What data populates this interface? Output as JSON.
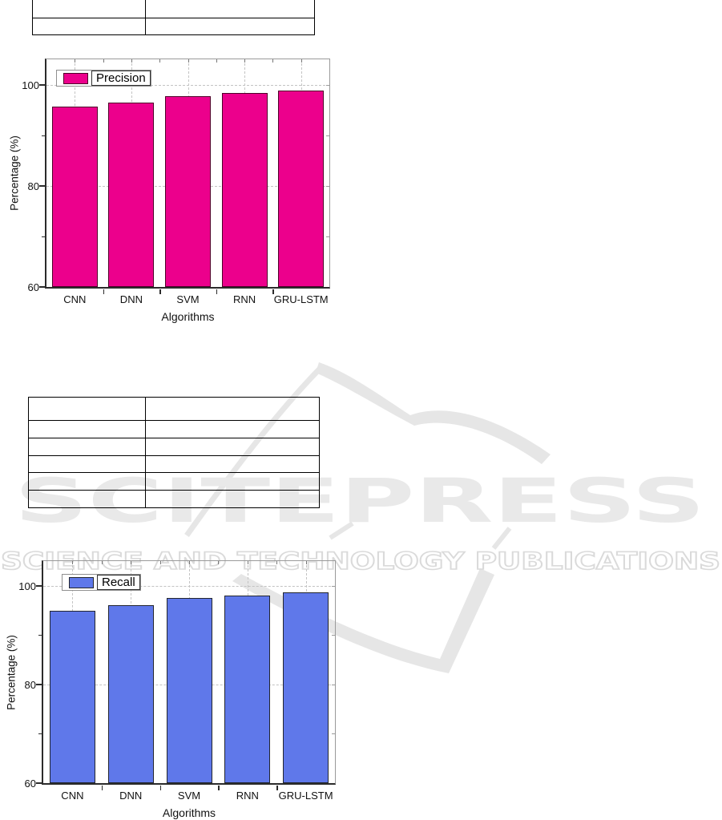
{
  "watermark": {
    "big_text": "SCITEPRESS",
    "sub_text": "SCIENCE AND TECHNOLOGY PUBLICATIONS",
    "color": "#e9e9e9",
    "logo_color": "#e6e6e6",
    "outline_color": "#dadada"
  },
  "tables": {
    "top": {
      "columns": 2,
      "rows": [
        [
          "",
          ""
        ],
        [
          "",
          ""
        ]
      ]
    },
    "middle": {
      "columns": 2,
      "rows": [
        [
          "",
          ""
        ],
        [
          "",
          ""
        ],
        [
          "",
          ""
        ],
        [
          "",
          ""
        ],
        [
          "",
          ""
        ],
        [
          "",
          ""
        ]
      ]
    }
  },
  "chart_data": [
    {
      "type": "bar",
      "title": "",
      "legend_label": "Precision",
      "categories": [
        "CNN",
        "DNN",
        "SVM",
        "RNN",
        "GRU-LSTM"
      ],
      "values": [
        95.6,
        96.4,
        97.7,
        98.4,
        98.9
      ],
      "xlabel": "Algorithms",
      "ylabel": "Percentage (%)",
      "ylim": [
        60,
        105
      ],
      "yticks": [
        60,
        80,
        100
      ],
      "yminorticks": [
        70,
        90
      ],
      "gridlines_y": [
        80,
        100
      ],
      "grid": true,
      "legend_position": "top-left",
      "bar_color": "#EC008C",
      "bar_border": "#4d0128"
    },
    {
      "type": "bar",
      "title": "",
      "legend_label": "Recall",
      "categories": [
        "CNN",
        "DNN",
        "SVM",
        "RNN",
        "GRU-LSTM"
      ],
      "values": [
        94.9,
        96.0,
        97.5,
        98.0,
        98.6
      ],
      "xlabel": "Algorithms",
      "ylabel": "Percentage (%)",
      "ylim": [
        60,
        105
      ],
      "yticks": [
        60,
        80,
        100
      ],
      "yminorticks": [
        70,
        90
      ],
      "gridlines_y": [
        80,
        100
      ],
      "grid": true,
      "legend_position": "top-left",
      "bar_color": "#5F78EA",
      "bar_border": "#23262e"
    }
  ]
}
